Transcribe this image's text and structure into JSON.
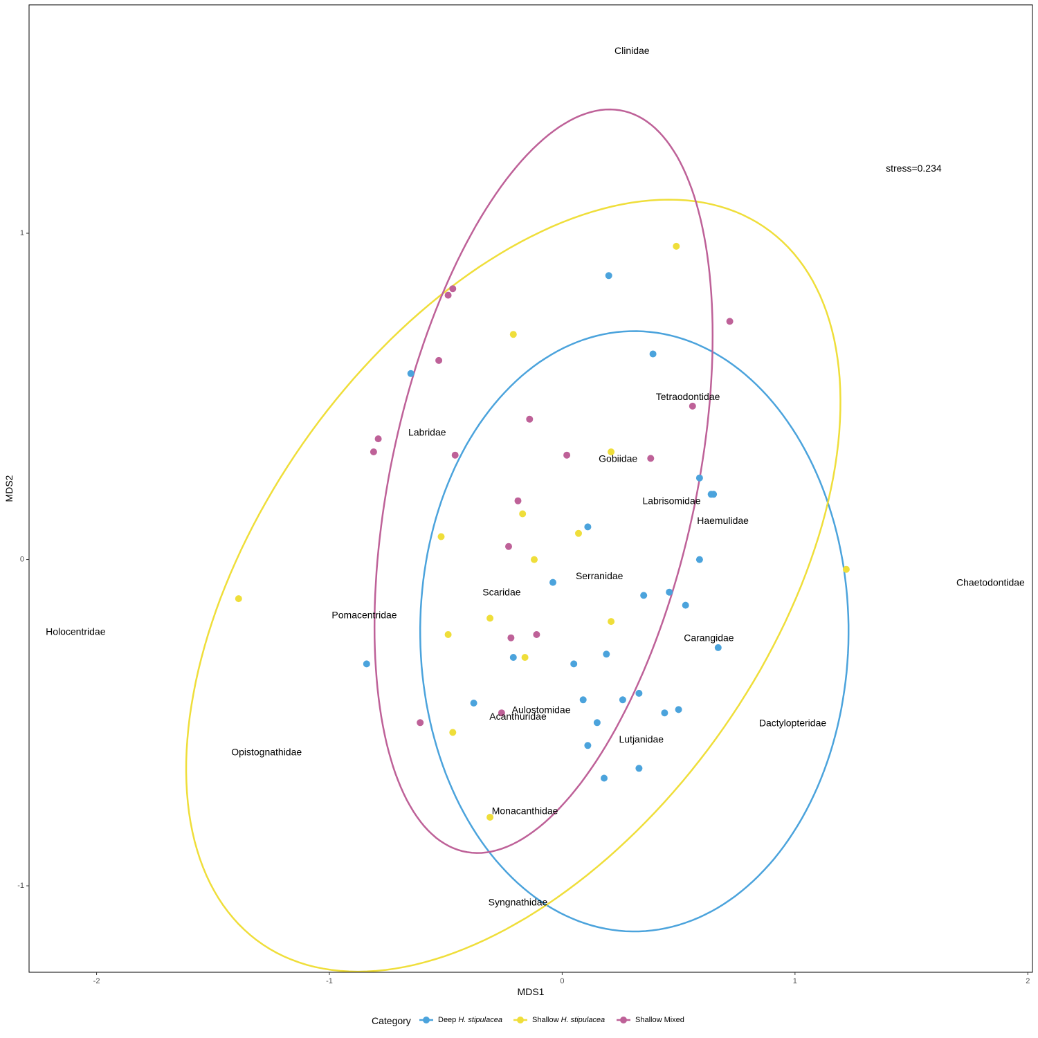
{
  "chart_data": {
    "type": "scatter",
    "title": "",
    "xlabel": "MDS1",
    "ylabel": "MDS2",
    "xlim": [
      -2.29,
      2.02
    ],
    "ylim": [
      -1.265,
      1.7
    ],
    "xticks": [
      "-2",
      "-1",
      "0",
      "1",
      "2"
    ],
    "yticks": [
      "-1",
      "0",
      "1"
    ],
    "stress": "stress=0.234",
    "stress_position": [
      1.51,
      1.2
    ],
    "grid": false,
    "legend": {
      "title": "Category",
      "placement": "bottom",
      "entries": [
        {
          "prefix": "Deep ",
          "italic": "H. stipulacea",
          "color": "#4BA3DC"
        },
        {
          "prefix": "Shallow ",
          "italic": "H. stipulacea",
          "color": "#EFDE3A"
        },
        {
          "prefix": "Shallow Mixed",
          "italic": "",
          "color": "#BE6198"
        }
      ]
    },
    "series": [
      {
        "color": "#4BA3DC",
        "points": [
          [
            0.2,
            0.87
          ],
          [
            0.39,
            0.63
          ],
          [
            -0.65,
            0.57
          ],
          [
            0.59,
            0.25
          ],
          [
            0.64,
            0.2
          ],
          [
            0.65,
            0.2
          ],
          [
            0.11,
            0.1
          ],
          [
            0.59,
            0.0
          ],
          [
            -0.04,
            -0.07
          ],
          [
            0.35,
            -0.11
          ],
          [
            0.46,
            -0.1
          ],
          [
            0.53,
            -0.14
          ],
          [
            0.67,
            -0.27
          ],
          [
            -0.84,
            -0.32
          ],
          [
            -0.21,
            -0.3
          ],
          [
            0.05,
            -0.32
          ],
          [
            0.19,
            -0.29
          ],
          [
            0.33,
            -0.41
          ],
          [
            0.26,
            -0.43
          ],
          [
            0.09,
            -0.43
          ],
          [
            0.44,
            -0.47
          ],
          [
            0.5,
            -0.46
          ],
          [
            -0.38,
            -0.44
          ],
          [
            0.15,
            -0.5
          ],
          [
            0.11,
            -0.57
          ],
          [
            0.33,
            -0.64
          ],
          [
            0.18,
            -0.67
          ]
        ]
      },
      {
        "color": "#EFDE3A",
        "points": [
          [
            0.49,
            0.96
          ],
          [
            -0.21,
            0.69
          ],
          [
            0.21,
            0.33
          ],
          [
            -0.17,
            0.14
          ],
          [
            0.07,
            0.08
          ],
          [
            -0.52,
            0.07
          ],
          [
            -0.12,
            0.0
          ],
          [
            1.22,
            -0.03
          ],
          [
            -1.39,
            -0.12
          ],
          [
            -0.31,
            -0.18
          ],
          [
            0.21,
            -0.19
          ],
          [
            -0.49,
            -0.23
          ],
          [
            -0.16,
            -0.3
          ],
          [
            -0.47,
            -0.53
          ],
          [
            -0.31,
            -0.79
          ]
        ]
      },
      {
        "color": "#BE6198",
        "points": [
          [
            -0.47,
            0.83
          ],
          [
            -0.49,
            0.81
          ],
          [
            0.72,
            0.73
          ],
          [
            -0.53,
            0.61
          ],
          [
            0.56,
            0.47
          ],
          [
            -0.14,
            0.43
          ],
          [
            -0.79,
            0.37
          ],
          [
            -0.81,
            0.33
          ],
          [
            -0.46,
            0.32
          ],
          [
            0.02,
            0.32
          ],
          [
            0.38,
            0.31
          ],
          [
            -0.19,
            0.18
          ],
          [
            -0.23,
            0.04
          ],
          [
            -0.22,
            -0.24
          ],
          [
            -0.11,
            -0.23
          ],
          [
            -0.26,
            -0.47
          ],
          [
            -0.61,
            -0.5
          ]
        ]
      }
    ],
    "ellipses": [
      {
        "color": "#4BA3DC",
        "cx": 0.31,
        "cy": -0.22,
        "rx": 0.92,
        "ry": 0.92,
        "angle": 12
      },
      {
        "color": "#EFDE3A",
        "cx": -0.21,
        "cy": -0.08,
        "rx": 1.59,
        "ry": 0.92,
        "angle": 35
      },
      {
        "color": "#BE6198",
        "cx": -0.08,
        "cy": 0.24,
        "rx": 1.19,
        "ry": 0.64,
        "angle": 70
      }
    ],
    "labels": [
      {
        "text": "Clinidae",
        "x": 0.3,
        "y": 1.56
      },
      {
        "text": "Tetraodontidae",
        "x": 0.54,
        "y": 0.5
      },
      {
        "text": "Labridae",
        "x": -0.58,
        "y": 0.39
      },
      {
        "text": "Gobiidae",
        "x": 0.24,
        "y": 0.31
      },
      {
        "text": "Labrisomidae",
        "x": 0.47,
        "y": 0.18
      },
      {
        "text": "Haemulidae",
        "x": 0.69,
        "y": 0.12
      },
      {
        "text": "Chaetodontidae",
        "x": 1.84,
        "y": -0.07
      },
      {
        "text": "Serranidae",
        "x": 0.16,
        "y": -0.05
      },
      {
        "text": "Scaridae",
        "x": -0.26,
        "y": -0.1
      },
      {
        "text": "Pomacentridae",
        "x": -0.85,
        "y": -0.17
      },
      {
        "text": "Holocentridae",
        "x": -2.09,
        "y": -0.22
      },
      {
        "text": "Carangidae",
        "x": 0.63,
        "y": -0.24
      },
      {
        "text": "Aulostomidae",
        "x": -0.09,
        "y": -0.46
      },
      {
        "text": "Acanthuridae",
        "x": -0.19,
        "y": -0.48
      },
      {
        "text": "Dactylopteridae",
        "x": 0.99,
        "y": -0.5
      },
      {
        "text": "Lutjanidae",
        "x": 0.34,
        "y": -0.55
      },
      {
        "text": "Opistognathidae",
        "x": -1.27,
        "y": -0.59
      },
      {
        "text": "Monacanthidae",
        "x": -0.16,
        "y": -0.77
      },
      {
        "text": "Syngnathidae",
        "x": -0.19,
        "y": -1.05
      }
    ]
  }
}
